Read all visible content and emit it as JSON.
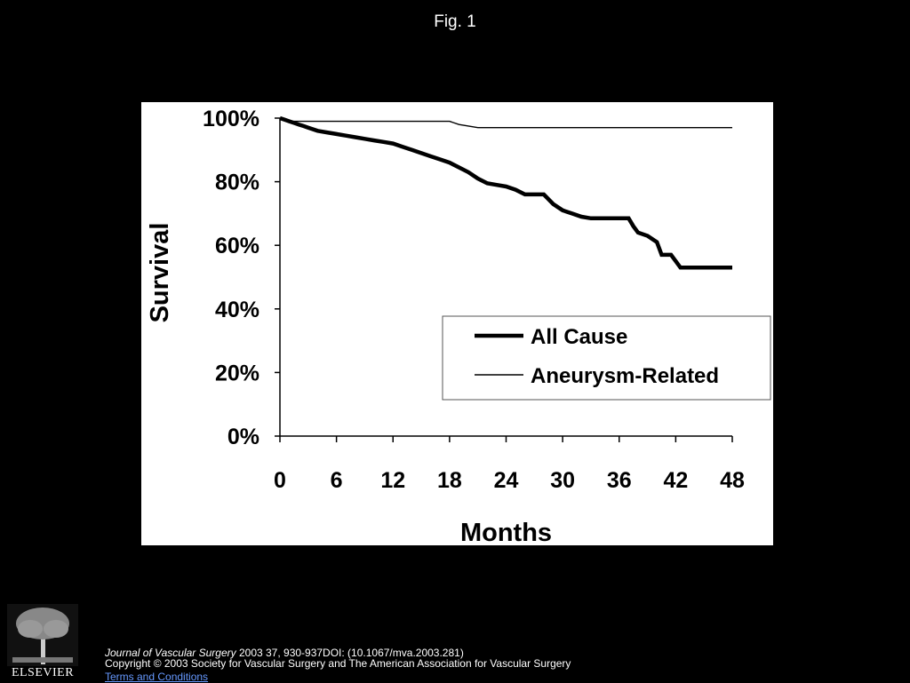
{
  "slide_title": "Fig. 1",
  "footer": {
    "journal": "Journal of Vascular Surgery",
    "citation_rest": " 2003 37, 930-937DOI: (10.1067/mva.2003.281)",
    "copyright": "Copyright © 2003 Society for Vascular Surgery and The American Association for Vascular Surgery",
    "terms_link": "Terms and Conditions"
  },
  "publisher_logo": "ELSEVIER",
  "colors": {
    "slide_background": "#000000",
    "figure_background": "#ffffff",
    "ink": "#000000",
    "link": "#6699ff"
  },
  "chart_data": {
    "type": "line",
    "xlabel": "Months",
    "ylabel": "Survival",
    "xlim": [
      0,
      48
    ],
    "ylim": [
      0,
      100
    ],
    "x_ticks": [
      "0",
      "6",
      "12",
      "18",
      "24",
      "30",
      "36",
      "42",
      "48"
    ],
    "y_ticks": [
      "0%",
      "20%",
      "40%",
      "60%",
      "80%",
      "100%"
    ],
    "legend_position": "bottom-right",
    "grid": false,
    "series": [
      {
        "name": "All Cause",
        "style": "thick",
        "points": [
          [
            0,
            100
          ],
          [
            0.5,
            99.5
          ],
          [
            1,
            99
          ],
          [
            1.5,
            98.5
          ],
          [
            2,
            98
          ],
          [
            2.5,
            97.5
          ],
          [
            3,
            97
          ],
          [
            4,
            96
          ],
          [
            5,
            95.5
          ],
          [
            6,
            95
          ],
          [
            7,
            94.5
          ],
          [
            8,
            94
          ],
          [
            9,
            93.5
          ],
          [
            10,
            93
          ],
          [
            11,
            92.5
          ],
          [
            12,
            92
          ],
          [
            13,
            91
          ],
          [
            14,
            90
          ],
          [
            15,
            89
          ],
          [
            16,
            88
          ],
          [
            17,
            87
          ],
          [
            18,
            86
          ],
          [
            19,
            84.5
          ],
          [
            20,
            83
          ],
          [
            21,
            81
          ],
          [
            22,
            79.5
          ],
          [
            23,
            79
          ],
          [
            24,
            78.5
          ],
          [
            25,
            77.5
          ],
          [
            26,
            76
          ],
          [
            28,
            76
          ],
          [
            29,
            73
          ],
          [
            30,
            71
          ],
          [
            31,
            70
          ],
          [
            32,
            69
          ],
          [
            33,
            68.5
          ],
          [
            36,
            68.5
          ],
          [
            37,
            68.5
          ],
          [
            37.5,
            66
          ],
          [
            38,
            64
          ],
          [
            39,
            63
          ],
          [
            40,
            61
          ],
          [
            40.5,
            57
          ],
          [
            41.5,
            57
          ],
          [
            42,
            55
          ],
          [
            42.5,
            53
          ],
          [
            48,
            53
          ]
        ]
      },
      {
        "name": "Aneurysm-Related",
        "style": "thin",
        "points": [
          [
            0,
            100
          ],
          [
            0.5,
            99.5
          ],
          [
            1,
            99
          ],
          [
            18,
            99
          ],
          [
            19,
            98
          ],
          [
            21,
            97
          ],
          [
            48,
            97
          ]
        ]
      }
    ]
  }
}
